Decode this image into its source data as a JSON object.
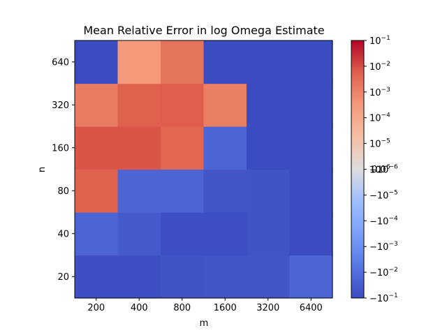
{
  "chart_data": {
    "type": "heatmap",
    "title": "Mean Relative Error in log Omega Estimate",
    "xlabel": "m",
    "ylabel": "n",
    "x_categories": [
      "200",
      "400",
      "800",
      "1600",
      "3200",
      "6400"
    ],
    "y_categories": [
      "20",
      "40",
      "80",
      "160",
      "320",
      "640"
    ],
    "colormap": "coolwarm",
    "norm": "symlog",
    "values": [
      [
        -0.08,
        -0.08,
        -0.06,
        -0.05,
        -0.05,
        -0.02
      ],
      [
        -0.02,
        -0.04,
        -0.08,
        -0.08,
        -0.06,
        -0.1
      ],
      [
        0.005,
        -0.02,
        -0.02,
        -0.05,
        -0.06,
        -0.1
      ],
      [
        0.008,
        0.008,
        0.004,
        -0.02,
        -0.1,
        -0.1
      ],
      [
        0.0015,
        0.005,
        0.006,
        0.0012,
        -0.1,
        -0.1
      ],
      [
        -0.1,
        0.0003,
        0.002,
        -0.1,
        -0.1,
        -0.1
      ]
    ],
    "colorbar": {
      "range": [
        -0.1,
        0.1
      ],
      "ticks": [
        {
          "base": "10",
          "exp": "−1",
          "value": 0.1
        },
        {
          "base": "10",
          "exp": "−2",
          "value": 0.01
        },
        {
          "base": "10",
          "exp": "−3",
          "value": 0.001
        },
        {
          "base": "10",
          "exp": "−4",
          "value": 0.0001
        },
        {
          "base": "10",
          "exp": "−5",
          "value": 1e-05
        },
        {
          "base": "10",
          "exp": "−6",
          "value": 1e-06
        },
        {
          "base": "−10",
          "exp": "−6",
          "value": -1e-06
        },
        {
          "base": "−10",
          "exp": "−5",
          "value": -1e-05
        },
        {
          "base": "−10",
          "exp": "−4",
          "value": -0.0001
        },
        {
          "base": "−10",
          "exp": "−3",
          "value": -0.001
        },
        {
          "base": "−10",
          "exp": "−2",
          "value": -0.01
        },
        {
          "base": "−10",
          "exp": "−1",
          "value": -0.1
        }
      ],
      "zero_label": "0.0"
    }
  }
}
